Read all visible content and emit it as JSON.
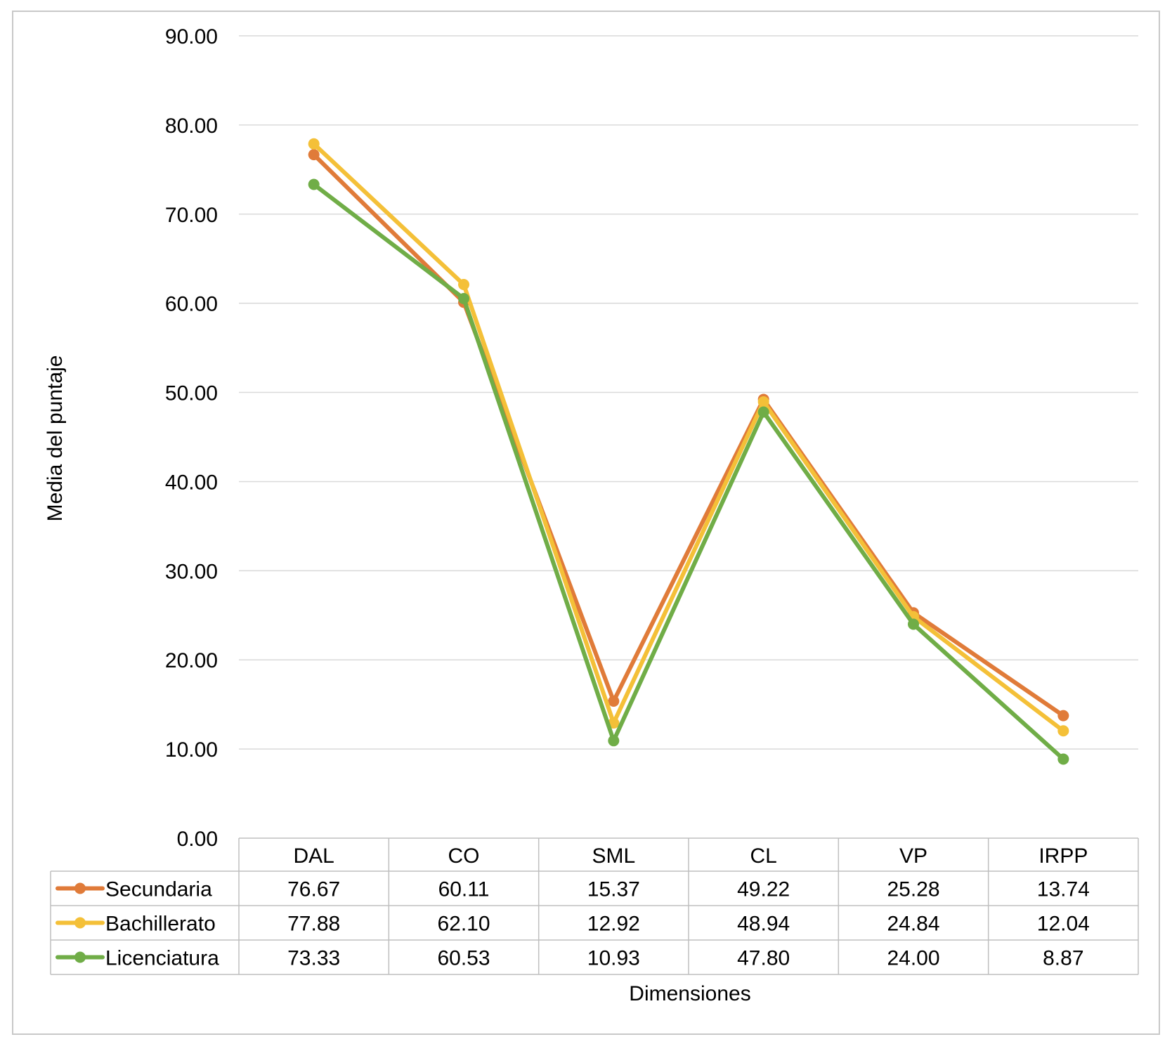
{
  "chart_data": {
    "type": "line",
    "title": "",
    "xlabel": "Dimensiones",
    "ylabel": "Media del puntaje",
    "ylim": [
      0,
      90
    ],
    "yticks": [
      0,
      10,
      20,
      30,
      40,
      50,
      60,
      70,
      80,
      90
    ],
    "ytick_labels": [
      "0.00",
      "10.00",
      "20.00",
      "30.00",
      "40.00",
      "50.00",
      "60.00",
      "70.00",
      "80.00",
      "90.00"
    ],
    "grid": true,
    "legend": "data-table-left",
    "categories": [
      "DAL",
      "CO",
      "SML",
      "CL",
      "VP",
      "IRPP"
    ],
    "series": [
      {
        "name": "Secundaria",
        "color": "#E07B39",
        "values": [
          76.67,
          60.11,
          15.37,
          49.22,
          25.28,
          13.74
        ],
        "labels": [
          "76.67",
          "60.11",
          "15.37",
          "49.22",
          "25.28",
          "13.74"
        ]
      },
      {
        "name": "Bachillerato",
        "color": "#F4C038",
        "values": [
          77.88,
          62.1,
          12.92,
          48.94,
          24.84,
          12.04
        ],
        "labels": [
          "77.88",
          "62.10",
          "12.92",
          "48.94",
          "24.84",
          "12.04"
        ]
      },
      {
        "name": "Licenciatura",
        "color": "#70AD47",
        "values": [
          73.33,
          60.53,
          10.93,
          47.8,
          24.0,
          8.87
        ],
        "labels": [
          "73.33",
          "60.53",
          "10.93",
          "47.80",
          "24.00",
          "8.87"
        ]
      }
    ]
  }
}
